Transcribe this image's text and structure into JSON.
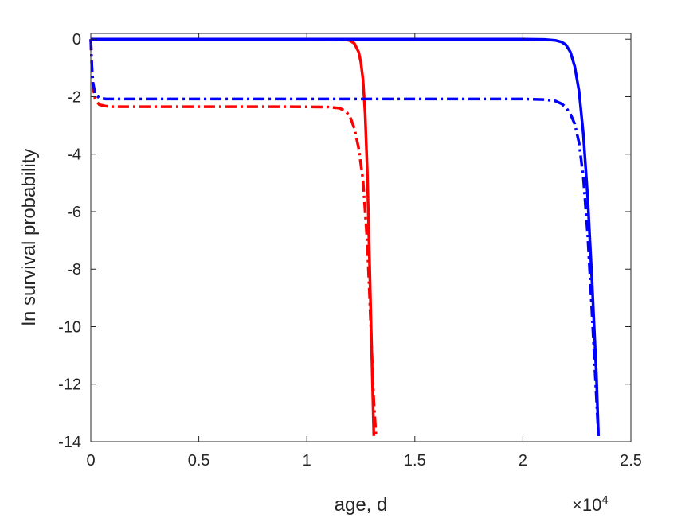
{
  "chart_data": {
    "type": "line",
    "title": "",
    "xlabel": "age, d",
    "ylabel": "ln survival probability",
    "xlim": [
      0,
      25000
    ],
    "ylim": [
      -14,
      0.2
    ],
    "x_tick_values": [
      0,
      5000,
      10000,
      15000,
      20000,
      25000
    ],
    "x_tick_labels": [
      "0",
      "0.5",
      "1",
      "1.5",
      "2",
      "2.5"
    ],
    "x_exponent_label": {
      "base": "×10",
      "power": "4"
    },
    "y_tick_values": [
      0,
      -2,
      -4,
      -6,
      -8,
      -10,
      -12,
      -14
    ],
    "y_tick_labels": [
      "0",
      "-2",
      "-4",
      "-6",
      "-8",
      "-10",
      "-12",
      "-14"
    ],
    "grid": false,
    "box": true,
    "legend": "none",
    "series": [
      {
        "color": "#ff0000",
        "dash": "solid",
        "x": [
          0,
          2000,
          4000,
          6000,
          8000,
          10000,
          11000,
          11500,
          11800,
          12000,
          12200,
          12400,
          12500,
          12600,
          12700,
          12800,
          12900,
          13000,
          13100
        ],
        "y": [
          0,
          0,
          0,
          0,
          0,
          0,
          0,
          -0.01,
          -0.02,
          -0.05,
          -0.15,
          -0.45,
          -0.8,
          -1.4,
          -2.6,
          -4.6,
          -7.6,
          -10.8,
          -13.8
        ]
      },
      {
        "color": "#ff0000",
        "dash": "dash-dot",
        "x": [
          0,
          50,
          100,
          200,
          400,
          700,
          1000,
          3000,
          6000,
          9000,
          11000,
          11500,
          11800,
          12000,
          12200,
          12400,
          12600,
          12800,
          12900,
          13000,
          13100,
          13200
        ],
        "y": [
          0,
          -1.0,
          -1.6,
          -2.1,
          -2.28,
          -2.33,
          -2.35,
          -2.35,
          -2.35,
          -2.35,
          -2.36,
          -2.4,
          -2.5,
          -2.7,
          -3.1,
          -3.8,
          -4.9,
          -7.1,
          -8.8,
          -10.8,
          -12.6,
          -13.8
        ]
      },
      {
        "color": "#0000ff",
        "dash": "solid",
        "x": [
          0,
          5000,
          10000,
          15000,
          20000,
          21000,
          21500,
          21800,
          22000,
          22200,
          22400,
          22600,
          22800,
          23000,
          23200,
          23400,
          23500
        ],
        "y": [
          0,
          0,
          0,
          0,
          0,
          -0.01,
          -0.04,
          -0.1,
          -0.2,
          -0.45,
          -0.95,
          -1.8,
          -3.3,
          -5.5,
          -8.4,
          -11.6,
          -13.8
        ]
      },
      {
        "color": "#0000ff",
        "dash": "dash-dot",
        "x": [
          0,
          50,
          100,
          200,
          400,
          700,
          1000,
          5000,
          10000,
          15000,
          20000,
          21000,
          21500,
          21800,
          22000,
          22200,
          22400,
          22600,
          22800,
          23000,
          23200,
          23400,
          23500
        ],
        "y": [
          0,
          -1.0,
          -1.5,
          -1.9,
          -2.05,
          -2.08,
          -2.08,
          -2.08,
          -2.08,
          -2.08,
          -2.08,
          -2.1,
          -2.15,
          -2.25,
          -2.38,
          -2.6,
          -2.95,
          -3.6,
          -4.8,
          -6.8,
          -9.5,
          -12.4,
          -13.8
        ]
      }
    ]
  }
}
